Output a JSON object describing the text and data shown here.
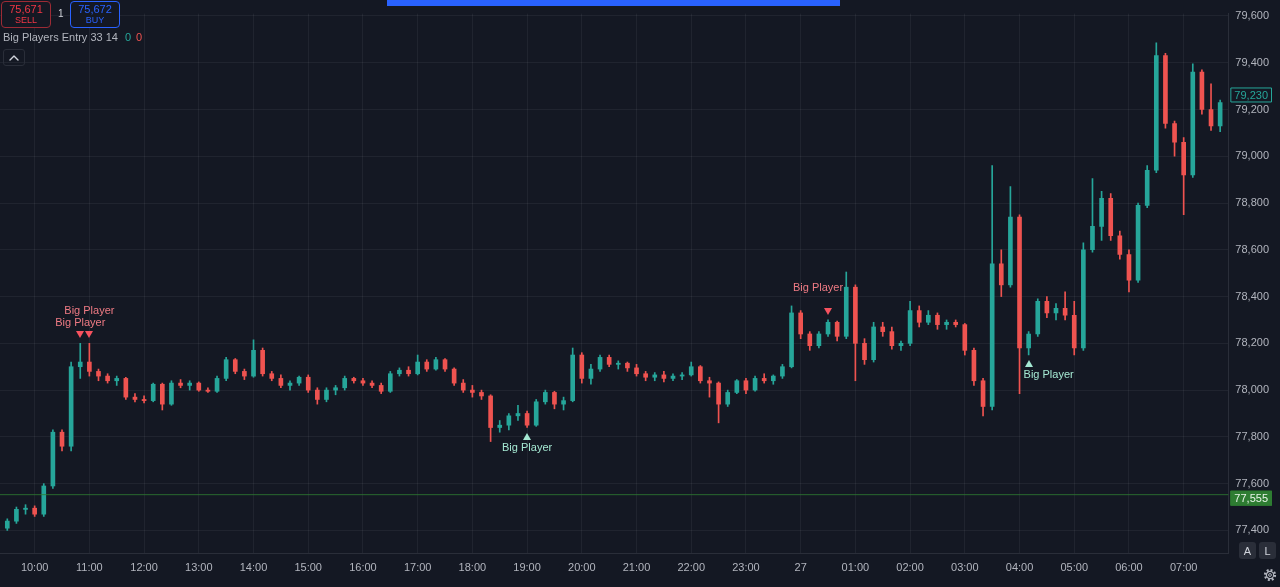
{
  "chart_data": {
    "type": "candlestick",
    "x": [
      "--01-26T09:30",
      "--01-26T09:40",
      "--01-26T09:50",
      "--01-26T10:00",
      "--01-26T10:10",
      "--01-26T10:20",
      "--01-26T10:30",
      "--01-26T10:40",
      "--01-26T10:50",
      "--01-26T11:00",
      "--01-26T11:10",
      "--01-26T11:20",
      "--01-26T11:30",
      "--01-26T11:40",
      "--01-26T11:50",
      "--01-26T12:00",
      "--01-26T12:10",
      "--01-26T12:20",
      "--01-26T12:30",
      "--01-26T12:40",
      "--01-26T12:50",
      "--01-26T13:00",
      "--01-26T13:10",
      "--01-26T13:20",
      "--01-26T13:30",
      "--01-26T13:40",
      "--01-26T13:50",
      "--01-26T14:00",
      "--01-26T14:10",
      "--01-26T14:20",
      "--01-26T14:30",
      "--01-26T14:40",
      "--01-26T14:50",
      "--01-26T15:00",
      "--01-26T15:10",
      "--01-26T15:20",
      "--01-26T15:30",
      "--01-26T15:40",
      "--01-26T15:50",
      "--01-26T16:00",
      "--01-26T16:10",
      "--01-26T16:20",
      "--01-26T16:30",
      "--01-26T16:40",
      "--01-26T16:50",
      "--01-26T17:00",
      "--01-26T17:10",
      "--01-26T17:20",
      "--01-26T17:30",
      "--01-26T17:40",
      "--01-26T17:50",
      "--01-26T18:00",
      "--01-26T18:10",
      "--01-26T18:20",
      "--01-26T18:30",
      "--01-26T18:40",
      "--01-26T18:50",
      "--01-26T19:00",
      "--01-26T19:10",
      "--01-26T19:20",
      "--01-26T19:30",
      "--01-26T19:40",
      "--01-26T19:50",
      "--01-26T20:00",
      "--01-26T20:10",
      "--01-26T20:20",
      "--01-26T20:30",
      "--01-26T20:40",
      "--01-26T20:50",
      "--01-26T21:00",
      "--01-26T21:10",
      "--01-26T21:20",
      "--01-26T21:30",
      "--01-26T21:40",
      "--01-26T21:50",
      "--01-26T22:00",
      "--01-26T22:10",
      "--01-26T22:20",
      "--01-26T22:30",
      "--01-26T22:40",
      "--01-26T22:50",
      "--01-26T23:00",
      "--01-26T23:10",
      "--01-26T23:20",
      "--01-26T23:30",
      "--01-26T23:40",
      "--01-26T23:50",
      "--01-27T00:00",
      "--01-27T00:10",
      "--01-27T00:20",
      "--01-27T00:30",
      "--01-27T00:40",
      "--01-27T00:50",
      "--01-27T01:00",
      "--01-27T01:10",
      "--01-27T01:20",
      "--01-27T01:30",
      "--01-27T01:40",
      "--01-27T01:50",
      "--01-27T02:00",
      "--01-27T02:10",
      "--01-27T02:20",
      "--01-27T02:30",
      "--01-27T02:40",
      "--01-27T02:50",
      "--01-27T03:00",
      "--01-27T03:10",
      "--01-27T03:20",
      "--01-27T03:30",
      "--01-27T03:40",
      "--01-27T03:50",
      "--01-27T04:00",
      "--01-27T04:10",
      "--01-27T04:20",
      "--01-27T04:30",
      "--01-27T04:40",
      "--01-27T04:50",
      "--01-27T05:00",
      "--01-27T05:10",
      "--01-27T05:20",
      "--01-27T05:30",
      "--01-27T05:40",
      "--01-27T05:50",
      "--01-27T06:00",
      "--01-27T06:10",
      "--01-27T06:20",
      "--01-27T06:30",
      "--01-27T06:40",
      "--01-27T06:50",
      "--01-27T07:00",
      "--01-27T07:10",
      "--01-27T07:20",
      "--01-27T07:30",
      "--01-27T07:40"
    ],
    "ohlc": [
      [
        77410,
        77450,
        77400,
        77440
      ],
      [
        77440,
        77500,
        77430,
        77490
      ],
      [
        77490,
        77510,
        77470,
        77495
      ],
      [
        77495,
        77505,
        77460,
        77470
      ],
      [
        77470,
        77600,
        77460,
        77590
      ],
      [
        77590,
        77830,
        77580,
        77820
      ],
      [
        77820,
        77830,
        77740,
        77760
      ],
      [
        77760,
        78120,
        77740,
        78100
      ],
      [
        78100,
        78200,
        78050,
        78120
      ],
      [
        78120,
        78200,
        78060,
        78080
      ],
      [
        78080,
        78090,
        78040,
        78060
      ],
      [
        78060,
        78070,
        78030,
        78040
      ],
      [
        78040,
        78060,
        78020,
        78050
      ],
      [
        78050,
        78055,
        77960,
        77970
      ],
      [
        77970,
        77985,
        77950,
        77960
      ],
      [
        77960,
        77975,
        77945,
        77955
      ],
      [
        77955,
        78030,
        77950,
        78025
      ],
      [
        78025,
        78030,
        77915,
        77940
      ],
      [
        77940,
        78040,
        77935,
        78030
      ],
      [
        78030,
        78045,
        78010,
        78020
      ],
      [
        78020,
        78040,
        78000,
        78030
      ],
      [
        78030,
        78035,
        77995,
        78000
      ],
      [
        78000,
        78010,
        77990,
        77995
      ],
      [
        77995,
        78060,
        77990,
        78050
      ],
      [
        78050,
        78140,
        78040,
        78130
      ],
      [
        78130,
        78135,
        78070,
        78080
      ],
      [
        78080,
        78090,
        78045,
        78060
      ],
      [
        78060,
        78215,
        78055,
        78170
      ],
      [
        78170,
        78180,
        78060,
        78070
      ],
      [
        78070,
        78080,
        78040,
        78050
      ],
      [
        78050,
        78065,
        78010,
        78020
      ],
      [
        78020,
        78040,
        78000,
        78030
      ],
      [
        78030,
        78060,
        78020,
        78055
      ],
      [
        78055,
        78065,
        77990,
        78000
      ],
      [
        78000,
        78010,
        77940,
        77960
      ],
      [
        77960,
        78010,
        77950,
        78000
      ],
      [
        78000,
        78020,
        77980,
        78010
      ],
      [
        78010,
        78060,
        78000,
        78050
      ],
      [
        78050,
        78055,
        78030,
        78040
      ],
      [
        78040,
        78050,
        78020,
        78030
      ],
      [
        78030,
        78040,
        78010,
        78020
      ],
      [
        78020,
        78030,
        77985,
        77995
      ],
      [
        77995,
        78080,
        77990,
        78070
      ],
      [
        78070,
        78095,
        78060,
        78085
      ],
      [
        78085,
        78100,
        78060,
        78070
      ],
      [
        78070,
        78150,
        78065,
        78120
      ],
      [
        78120,
        78130,
        78080,
        78090
      ],
      [
        78090,
        78140,
        78085,
        78130
      ],
      [
        78130,
        78135,
        78080,
        78090
      ],
      [
        78090,
        78095,
        78020,
        78030
      ],
      [
        78030,
        78045,
        77990,
        78000
      ],
      [
        78000,
        78020,
        77970,
        77990
      ],
      [
        77990,
        78000,
        77960,
        77975
      ],
      [
        77975,
        77980,
        77780,
        77840
      ],
      [
        77840,
        77870,
        77820,
        77850
      ],
      [
        77850,
        77900,
        77830,
        77890
      ],
      [
        77890,
        77935,
        77870,
        77900
      ],
      [
        77900,
        77910,
        77840,
        77850
      ],
      [
        77850,
        77960,
        77845,
        77950
      ],
      [
        77950,
        78000,
        77940,
        77990
      ],
      [
        77990,
        77995,
        77920,
        77940
      ],
      [
        77940,
        77970,
        77915,
        77955
      ],
      [
        77955,
        78180,
        77950,
        78150
      ],
      [
        78150,
        78160,
        78030,
        78050
      ],
      [
        78050,
        78110,
        78025,
        78090
      ],
      [
        78090,
        78150,
        78080,
        78140
      ],
      [
        78140,
        78150,
        78100,
        78110
      ],
      [
        78110,
        78125,
        78090,
        78115
      ],
      [
        78115,
        78120,
        78080,
        78095
      ],
      [
        78095,
        78110,
        78060,
        78070
      ],
      [
        78070,
        78080,
        78040,
        78055
      ],
      [
        78055,
        78075,
        78040,
        78065
      ],
      [
        78065,
        78080,
        78035,
        78050
      ],
      [
        78050,
        78070,
        78040,
        78060
      ],
      [
        78060,
        78075,
        78045,
        78065
      ],
      [
        78065,
        78120,
        78060,
        78100
      ],
      [
        78100,
        78105,
        78030,
        78040
      ],
      [
        78040,
        78055,
        77970,
        78030
      ],
      [
        78030,
        78035,
        77860,
        77940
      ],
      [
        77940,
        78000,
        77930,
        77990
      ],
      [
        77990,
        78045,
        77985,
        78040
      ],
      [
        78040,
        78050,
        77985,
        78000
      ],
      [
        78000,
        78060,
        77995,
        78050
      ],
      [
        78050,
        78070,
        78030,
        78040
      ],
      [
        78040,
        78065,
        78025,
        78060
      ],
      [
        78060,
        78110,
        78050,
        78100
      ],
      [
        78100,
        78360,
        78095,
        78330
      ],
      [
        78330,
        78340,
        78220,
        78240
      ],
      [
        78240,
        78250,
        78170,
        78190
      ],
      [
        78190,
        78250,
        78180,
        78240
      ],
      [
        78240,
        78300,
        78230,
        78290
      ],
      [
        78290,
        78295,
        78210,
        78230
      ],
      [
        78230,
        78505,
        78220,
        78440
      ],
      [
        78440,
        78450,
        78040,
        78200
      ],
      [
        78200,
        78220,
        78110,
        78130
      ],
      [
        78130,
        78290,
        78120,
        78270
      ],
      [
        78270,
        78290,
        78230,
        78250
      ],
      [
        78250,
        78270,
        78175,
        78190
      ],
      [
        78190,
        78210,
        78170,
        78200
      ],
      [
        78200,
        78380,
        78190,
        78340
      ],
      [
        78340,
        78360,
        78270,
        78290
      ],
      [
        78290,
        78340,
        78280,
        78320
      ],
      [
        78320,
        78330,
        78260,
        78280
      ],
      [
        78280,
        78300,
        78260,
        78290
      ],
      [
        78290,
        78300,
        78270,
        78280
      ],
      [
        78280,
        78285,
        78150,
        78170
      ],
      [
        78170,
        78180,
        78020,
        78040
      ],
      [
        78040,
        78050,
        77890,
        77930
      ],
      [
        77930,
        78960,
        77915,
        78540
      ],
      [
        78540,
        78600,
        78400,
        78450
      ],
      [
        78450,
        78870,
        78440,
        78740
      ],
      [
        78740,
        78750,
        77985,
        78180
      ],
      [
        78180,
        78250,
        78150,
        78240
      ],
      [
        78240,
        78390,
        78230,
        78380
      ],
      [
        78380,
        78400,
        78310,
        78330
      ],
      [
        78330,
        78370,
        78300,
        78350
      ],
      [
        78350,
        78420,
        78300,
        78320
      ],
      [
        78320,
        78380,
        78150,
        78180
      ],
      [
        78180,
        78630,
        78170,
        78600
      ],
      [
        78600,
        78905,
        78590,
        78700
      ],
      [
        78700,
        78850,
        78640,
        78820
      ],
      [
        78820,
        78840,
        78640,
        78660
      ],
      [
        78660,
        78680,
        78560,
        78580
      ],
      [
        78580,
        78600,
        78420,
        78470
      ],
      [
        78470,
        78800,
        78460,
        78790
      ],
      [
        78790,
        78960,
        78780,
        78940
      ],
      [
        78940,
        79485,
        78930,
        79430
      ],
      [
        79430,
        79440,
        79120,
        79140
      ],
      [
        79140,
        79150,
        79000,
        79060
      ],
      [
        79060,
        79080,
        78750,
        78920
      ],
      [
        78920,
        79395,
        78910,
        79360
      ],
      [
        79360,
        79370,
        79180,
        79200
      ],
      [
        79200,
        79310,
        79110,
        79130
      ],
      [
        79130,
        79240,
        79105,
        79230
      ]
    ],
    "colors": [
      "#26a69a",
      "#26a69a",
      "#26a69a",
      "#ef5350",
      "#26a69a",
      "#26a69a",
      "#ef5350",
      "#26a69a",
      "#26a69a",
      "#ef5350",
      "#ef5350",
      "#ef5350",
      "#26a69a",
      "#ef5350",
      "#ef5350",
      "#ef5350",
      "#26a69a",
      "#ef5350",
      "#26a69a",
      "#ef5350",
      "#26a69a",
      "#ef5350",
      "#ef5350",
      "#26a69a",
      "#26a69a",
      "#ef5350",
      "#ef5350",
      "#26a69a",
      "#ef5350",
      "#ef5350",
      "#ef5350",
      "#26a69a",
      "#26a69a",
      "#ef5350",
      "#ef5350",
      "#26a69a",
      "#26a69a",
      "#26a69a",
      "#ef5350",
      "#ef5350",
      "#ef5350",
      "#ef5350",
      "#26a69a",
      "#26a69a",
      "#ef5350",
      "#26a69a",
      "#ef5350",
      "#26a69a",
      "#ef5350",
      "#ef5350",
      "#ef5350",
      "#ef5350",
      "#ef5350",
      "#ef5350",
      "#26a69a",
      "#26a69a",
      "#26a69a",
      "#ef5350",
      "#26a69a",
      "#26a69a",
      "#ef5350",
      "#26a69a",
      "#26a69a",
      "#ef5350",
      "#26a69a",
      "#26a69a",
      "#ef5350",
      "#26a69a",
      "#ef5350",
      "#ef5350",
      "#ef5350",
      "#26a69a",
      "#ef5350",
      "#26a69a",
      "#26a69a",
      "#26a69a",
      "#ef5350",
      "#ef5350",
      "#ef5350",
      "#26a69a",
      "#26a69a",
      "#ef5350",
      "#26a69a",
      "#ef5350",
      "#26a69a",
      "#26a69a",
      "#26a69a",
      "#ef5350",
      "#ef5350",
      "#26a69a",
      "#26a69a",
      "#ef5350",
      "#26a69a",
      "#ef5350",
      "#ef5350",
      "#26a69a",
      "#ef5350",
      "#ef5350",
      "#26a69a",
      "#26a69a",
      "#ef5350",
      "#26a69a",
      "#ef5350",
      "#26a69a",
      "#ef5350",
      "#ef5350",
      "#ef5350",
      "#ef5350",
      "#26a69a",
      "#ef5350",
      "#26a69a",
      "#ef5350",
      "#26a69a",
      "#26a69a",
      "#ef5350",
      "#26a69a",
      "#ef5350",
      "#ef5350",
      "#26a69a",
      "#26a69a",
      "#26a69a",
      "#ef5350",
      "#ef5350",
      "#ef5350",
      "#26a69a",
      "#26a69a",
      "#26a69a",
      "#ef5350",
      "#ef5350",
      "#ef5350",
      "#26a69a",
      "#ef5350",
      "#ef5350",
      "#26a69a"
    ],
    "xlim": [
      "--01-26T09:22",
      "--01-27T07:49"
    ],
    "xticks": [
      {
        "value": "--01-26T10:00",
        "label": "10:00"
      },
      {
        "value": "--01-26T11:00",
        "label": "11:00"
      },
      {
        "value": "--01-26T12:00",
        "label": "12:00"
      },
      {
        "value": "--01-26T13:00",
        "label": "13:00"
      },
      {
        "value": "--01-26T14:00",
        "label": "14:00"
      },
      {
        "value": "--01-26T15:00",
        "label": "15:00"
      },
      {
        "value": "--01-26T16:00",
        "label": "16:00"
      },
      {
        "value": "--01-26T17:00",
        "label": "17:00"
      },
      {
        "value": "--01-26T18:00",
        "label": "18:00"
      },
      {
        "value": "--01-26T19:00",
        "label": "19:00"
      },
      {
        "value": "--01-26T20:00",
        "label": "20:00"
      },
      {
        "value": "--01-26T21:00",
        "label": "21:00"
      },
      {
        "value": "--01-26T22:00",
        "label": "22:00"
      },
      {
        "value": "--01-26T23:00",
        "label": "23:00"
      },
      {
        "value": "--01-27T00:00",
        "label": "27"
      },
      {
        "value": "--01-27T01:00",
        "label": "01:00"
      },
      {
        "value": "--01-27T02:00",
        "label": "02:00"
      },
      {
        "value": "--01-27T03:00",
        "label": "03:00"
      },
      {
        "value": "--01-27T04:00",
        "label": "04:00"
      },
      {
        "value": "--01-27T05:00",
        "label": "05:00"
      },
      {
        "value": "--01-27T06:00",
        "label": "06:00"
      },
      {
        "value": "--01-27T07:00",
        "label": "07:00"
      }
    ],
    "ylim": [
      77300,
      79610
    ],
    "yticks": [
      {
        "value": 77400,
        "label": "77,400"
      },
      {
        "value": 77600,
        "label": "77,600"
      },
      {
        "value": 77800,
        "label": "77,800"
      },
      {
        "value": 78000,
        "label": "78,000"
      },
      {
        "value": 78200,
        "label": "78,200"
      },
      {
        "value": 78400,
        "label": "78,400"
      },
      {
        "value": 78600,
        "label": "78,600"
      },
      {
        "value": 78800,
        "label": "78,800"
      },
      {
        "value": 79000,
        "label": "79,000"
      },
      {
        "value": 79200,
        "label": "79,200"
      },
      {
        "value": 79400,
        "label": "79,400"
      },
      {
        "value": 79600,
        "label": "79,600"
      }
    ],
    "grid": true,
    "ref_lines": [
      {
        "axis": "y",
        "value": 77555,
        "label": "77,555",
        "color": "#2e7d32"
      }
    ],
    "annotations": [
      "75,671",
      "SELL",
      "1",
      "75,672",
      "BUY",
      "Big Players Entry 33 14",
      "0",
      "0",
      "79,230",
      "A",
      "L",
      {
        "text": "Big Player",
        "x": "--01-26T10:50",
        "y": 78200
      },
      {
        "text": "Big Player",
        "x": "--01-26T11:00",
        "y": 78200
      },
      {
        "text": "Big Player",
        "x": "--01-26T19:00",
        "y": 77840
      },
      {
        "text": "Big Player",
        "x": "--01-27T00:30",
        "y": 78300
      },
      {
        "text": "Big Player",
        "x": "--01-27T04:10",
        "y": 78150
      }
    ]
  }
}
